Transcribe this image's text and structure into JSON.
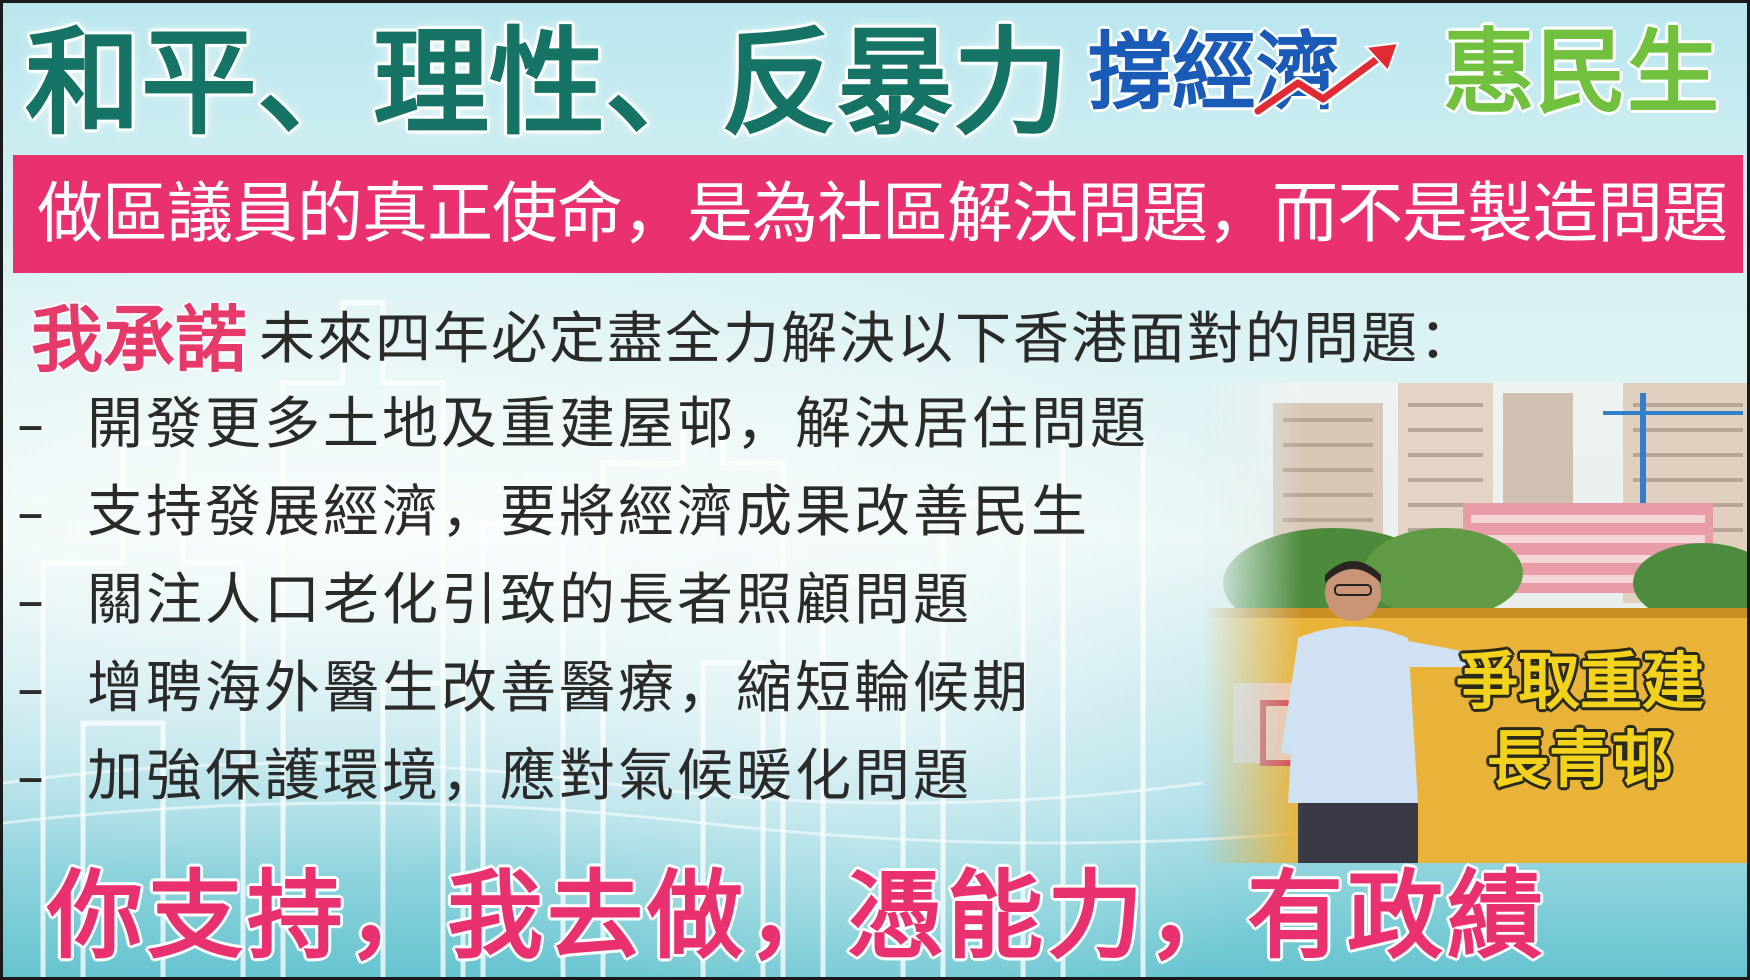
{
  "header": {
    "headline": "和平、理性、反暴力",
    "economy_slogan": "撐經濟",
    "livelihood_slogan": "惠民生"
  },
  "banner": {
    "mission": "做區議員的真正使命，是為社區解決問題，而不是製造問題"
  },
  "pledge": {
    "label": "我承諾",
    "text": "未來四年必定盡全力解決以下香港面對的問題："
  },
  "issues": [
    "開發更多土地及重建屋邨，解決居住問題",
    "支持發展經濟，要將經濟成果改善民生",
    "關注人口老化引致的長者照顧問題",
    "增聘海外醫生改善醫療，縮短輪候期",
    "加強保護環境，應對氣候暖化問題"
  ],
  "issue_dash": "–",
  "campaign": {
    "line1": "爭取重建",
    "line2": "長青邨"
  },
  "footer": {
    "slogan": "你支持，我去做，憑能力，有政績"
  },
  "colors": {
    "headline": "#167466",
    "economy": "#1a5bb8",
    "livelihood": "#72c13e",
    "banner": "#e8316e",
    "pledge_label": "#e63b6a",
    "campaign": "#f3d21c",
    "footer": "#e8316e",
    "background": "#d2eff2"
  },
  "icons": {
    "trend": "rising-red-arrow-icon"
  }
}
